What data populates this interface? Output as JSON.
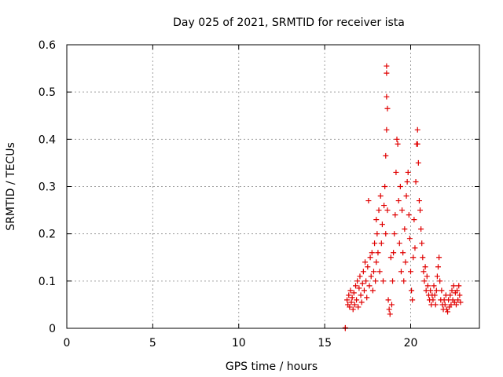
{
  "chart_data": {
    "type": "scatter",
    "title": "Day 025 of 2021, SRMTID for receiver ista",
    "xlabel": "GPS time / hours",
    "ylabel": "SRMTID / TECUs",
    "xlim": [
      0,
      24
    ],
    "ylim": [
      0,
      0.6
    ],
    "xticks": [
      0,
      5,
      10,
      15,
      20
    ],
    "yticks": [
      0,
      0.1,
      0.2,
      0.3,
      0.4,
      0.5,
      0.6
    ],
    "ytick_labels": [
      "0",
      "0.1",
      "0.2",
      "0.3",
      "0.4",
      "0.5",
      "0.6"
    ],
    "grid": true,
    "marker": "+",
    "color": "#e00000",
    "series": [
      {
        "name": "ista",
        "points": [
          [
            16.2,
            0.0
          ],
          [
            16.2,
            0.001
          ],
          [
            16.3,
            0.06
          ],
          [
            16.35,
            0.05
          ],
          [
            16.4,
            0.07
          ],
          [
            16.45,
            0.045
          ],
          [
            16.5,
            0.08
          ],
          [
            16.55,
            0.055
          ],
          [
            16.6,
            0.065
          ],
          [
            16.65,
            0.04
          ],
          [
            16.7,
            0.075
          ],
          [
            16.75,
            0.05
          ],
          [
            16.8,
            0.09
          ],
          [
            16.85,
            0.06
          ],
          [
            16.9,
            0.1
          ],
          [
            16.95,
            0.045
          ],
          [
            17.0,
            0.085
          ],
          [
            17.05,
            0.11
          ],
          [
            17.1,
            0.07
          ],
          [
            17.15,
            0.055
          ],
          [
            17.2,
            0.095
          ],
          [
            17.25,
            0.12
          ],
          [
            17.3,
            0.08
          ],
          [
            17.35,
            0.14
          ],
          [
            17.4,
            0.1
          ],
          [
            17.45,
            0.065
          ],
          [
            17.5,
            0.13
          ],
          [
            17.55,
            0.27
          ],
          [
            17.6,
            0.09
          ],
          [
            17.65,
            0.15
          ],
          [
            17.7,
            0.11
          ],
          [
            17.75,
            0.16
          ],
          [
            17.8,
            0.08
          ],
          [
            17.85,
            0.12
          ],
          [
            17.9,
            0.18
          ],
          [
            17.95,
            0.1
          ],
          [
            18.0,
            0.14
          ],
          [
            18.0,
            0.23
          ],
          [
            18.05,
            0.2
          ],
          [
            18.1,
            0.16
          ],
          [
            18.15,
            0.25
          ],
          [
            18.2,
            0.12
          ],
          [
            18.25,
            0.28
          ],
          [
            18.3,
            0.18
          ],
          [
            18.35,
            0.22
          ],
          [
            18.4,
            0.1
          ],
          [
            18.45,
            0.26
          ],
          [
            18.5,
            0.3
          ],
          [
            18.55,
            0.2
          ],
          [
            18.55,
            0.365
          ],
          [
            18.6,
            0.555
          ],
          [
            18.6,
            0.54
          ],
          [
            18.6,
            0.49
          ],
          [
            18.65,
            0.465
          ],
          [
            18.6,
            0.42
          ],
          [
            18.65,
            0.25
          ],
          [
            18.7,
            0.06
          ],
          [
            18.75,
            0.04
          ],
          [
            18.8,
            0.03
          ],
          [
            18.85,
            0.15
          ],
          [
            18.9,
            0.05
          ],
          [
            18.95,
            0.1
          ],
          [
            19.0,
            0.16
          ],
          [
            19.05,
            0.2
          ],
          [
            19.1,
            0.24
          ],
          [
            19.15,
            0.33
          ],
          [
            19.2,
            0.4
          ],
          [
            19.25,
            0.39
          ],
          [
            19.3,
            0.27
          ],
          [
            19.35,
            0.18
          ],
          [
            19.4,
            0.3
          ],
          [
            19.45,
            0.12
          ],
          [
            19.5,
            0.25
          ],
          [
            19.55,
            0.16
          ],
          [
            19.6,
            0.1
          ],
          [
            19.65,
            0.21
          ],
          [
            19.7,
            0.14
          ],
          [
            19.75,
            0.28
          ],
          [
            19.8,
            0.31
          ],
          [
            19.85,
            0.33
          ],
          [
            19.9,
            0.24
          ],
          [
            19.95,
            0.19
          ],
          [
            20.0,
            0.12
          ],
          [
            20.05,
            0.08
          ],
          [
            20.1,
            0.06
          ],
          [
            20.15,
            0.15
          ],
          [
            20.2,
            0.23
          ],
          [
            20.25,
            0.17
          ],
          [
            20.3,
            0.31
          ],
          [
            20.35,
            0.39
          ],
          [
            20.4,
            0.42
          ],
          [
            20.4,
            0.39
          ],
          [
            20.45,
            0.35
          ],
          [
            20.5,
            0.27
          ],
          [
            20.55,
            0.25
          ],
          [
            20.6,
            0.21
          ],
          [
            20.65,
            0.18
          ],
          [
            20.7,
            0.15
          ],
          [
            20.75,
            0.12
          ],
          [
            20.8,
            0.1
          ],
          [
            20.85,
            0.13
          ],
          [
            20.9,
            0.08
          ],
          [
            20.95,
            0.11
          ],
          [
            21.0,
            0.09
          ],
          [
            21.05,
            0.07
          ],
          [
            21.1,
            0.06
          ],
          [
            21.15,
            0.08
          ],
          [
            21.2,
            0.05
          ],
          [
            21.25,
            0.07
          ],
          [
            21.3,
            0.06
          ],
          [
            21.35,
            0.09
          ],
          [
            21.4,
            0.07
          ],
          [
            21.45,
            0.05
          ],
          [
            21.5,
            0.08
          ],
          [
            21.55,
            0.11
          ],
          [
            21.6,
            0.13
          ],
          [
            21.65,
            0.15
          ],
          [
            21.7,
            0.1
          ],
          [
            21.75,
            0.06
          ],
          [
            21.8,
            0.08
          ],
          [
            21.85,
            0.05
          ],
          [
            21.9,
            0.04
          ],
          [
            21.95,
            0.06
          ],
          [
            22.0,
            0.05
          ],
          [
            22.05,
            0.07
          ],
          [
            22.1,
            0.04
          ],
          [
            22.15,
            0.035
          ],
          [
            22.2,
            0.06
          ],
          [
            22.25,
            0.045
          ],
          [
            22.3,
            0.07
          ],
          [
            22.35,
            0.05
          ],
          [
            22.4,
            0.08
          ],
          [
            22.45,
            0.06
          ],
          [
            22.5,
            0.09
          ],
          [
            22.55,
            0.055
          ],
          [
            22.6,
            0.075
          ],
          [
            22.65,
            0.05
          ],
          [
            22.7,
            0.08
          ],
          [
            22.75,
            0.06
          ],
          [
            22.8,
            0.09
          ],
          [
            22.85,
            0.07
          ],
          [
            22.9,
            0.055
          ]
        ]
      }
    ]
  }
}
